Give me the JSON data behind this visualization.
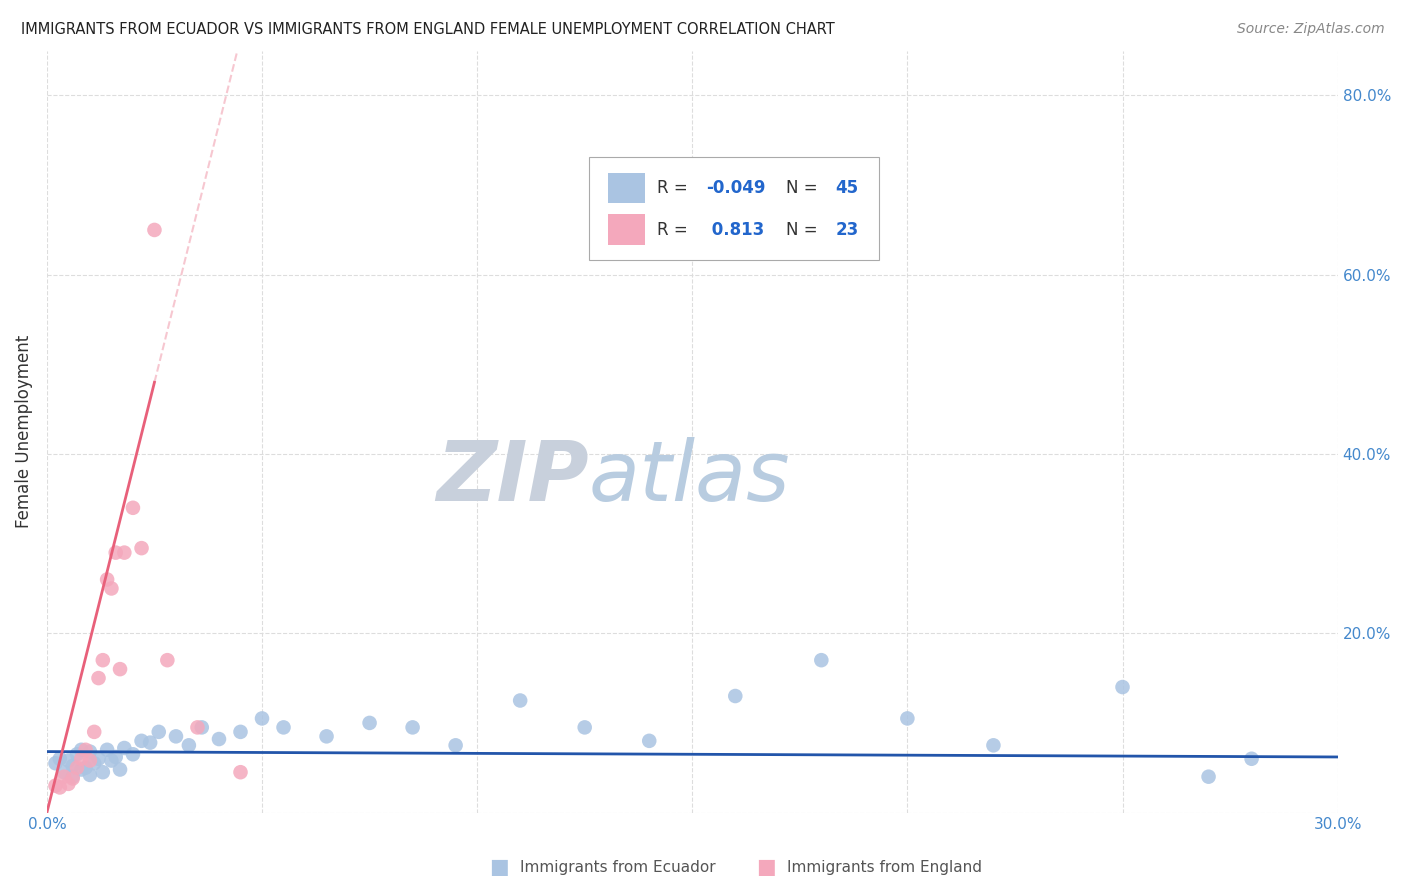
{
  "title": "IMMIGRANTS FROM ECUADOR VS IMMIGRANTS FROM ENGLAND FEMALE UNEMPLOYMENT CORRELATION CHART",
  "source": "Source: ZipAtlas.com",
  "ylabel": "Female Unemployment",
  "xlim": [
    0.0,
    0.3
  ],
  "ylim": [
    0.0,
    0.85
  ],
  "ecuador_R": -0.049,
  "ecuador_N": 45,
  "england_R": 0.813,
  "england_N": 23,
  "ecuador_color": "#aac4e2",
  "england_color": "#f4a8bc",
  "ecuador_line_color": "#2255aa",
  "england_line_color": "#e8607a",
  "ecuador_points_x": [
    0.002,
    0.003,
    0.004,
    0.005,
    0.006,
    0.006,
    0.007,
    0.008,
    0.008,
    0.009,
    0.01,
    0.01,
    0.011,
    0.012,
    0.013,
    0.014,
    0.015,
    0.016,
    0.017,
    0.018,
    0.02,
    0.022,
    0.024,
    0.026,
    0.03,
    0.033,
    0.036,
    0.04,
    0.045,
    0.05,
    0.055,
    0.065,
    0.075,
    0.085,
    0.095,
    0.11,
    0.125,
    0.14,
    0.16,
    0.18,
    0.2,
    0.22,
    0.25,
    0.27,
    0.28
  ],
  "ecuador_points_y": [
    0.055,
    0.06,
    0.045,
    0.058,
    0.052,
    0.04,
    0.065,
    0.048,
    0.07,
    0.05,
    0.042,
    0.068,
    0.055,
    0.06,
    0.045,
    0.07,
    0.058,
    0.062,
    0.048,
    0.072,
    0.065,
    0.08,
    0.078,
    0.09,
    0.085,
    0.075,
    0.095,
    0.082,
    0.09,
    0.105,
    0.095,
    0.085,
    0.1,
    0.095,
    0.075,
    0.125,
    0.095,
    0.08,
    0.13,
    0.17,
    0.105,
    0.075,
    0.14,
    0.04,
    0.06
  ],
  "england_points_x": [
    0.002,
    0.003,
    0.004,
    0.005,
    0.006,
    0.007,
    0.008,
    0.009,
    0.01,
    0.011,
    0.012,
    0.013,
    0.014,
    0.015,
    0.016,
    0.017,
    0.018,
    0.02,
    0.022,
    0.025,
    0.028,
    0.035,
    0.045
  ],
  "england_points_y": [
    0.03,
    0.028,
    0.04,
    0.032,
    0.038,
    0.05,
    0.06,
    0.07,
    0.058,
    0.09,
    0.15,
    0.17,
    0.26,
    0.25,
    0.29,
    0.16,
    0.29,
    0.34,
    0.295,
    0.65,
    0.17,
    0.095,
    0.045
  ],
  "watermark_zip_color": "#c8d0dc",
  "watermark_atlas_color": "#b8cce0",
  "background_color": "#ffffff",
  "grid_color": "#dddddd"
}
